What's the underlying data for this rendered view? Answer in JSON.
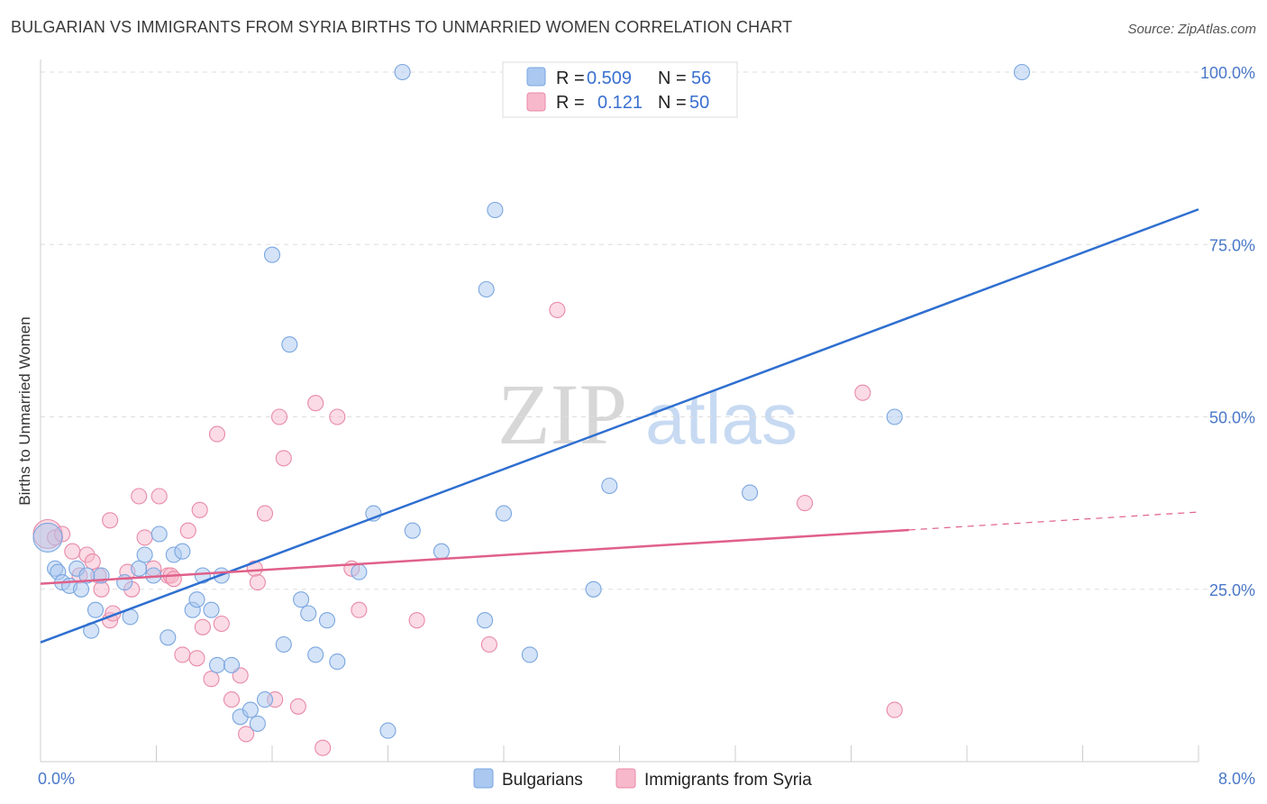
{
  "header": {
    "title": "BULGARIAN VS IMMIGRANTS FROM SYRIA BIRTHS TO UNMARRIED WOMEN CORRELATION CHART",
    "source": "Source: ZipAtlas.com"
  },
  "watermark": {
    "zip": "ZIP",
    "atlas": "atlas"
  },
  "legend_box": [
    {
      "r_label": "R =",
      "r_value": "0.509",
      "n_label": "N =",
      "n_value": "56"
    },
    {
      "r_label": "R =",
      "r_value": "0.121",
      "n_label": "N =",
      "n_value": "50"
    }
  ],
  "bottom_legend": [
    "Bulgarians",
    "Immigrants from Syria"
  ],
  "colors": {
    "bulgarians_fill": "#aac8f0",
    "bulgarians_stroke": "#7aa6e0",
    "bulgarians_line": "#2f6fd0",
    "syria_fill": "#f7b8cb",
    "syria_stroke": "#e88aa8",
    "syria_line": "#e0608a",
    "tick_text": "#4a78c8",
    "grid": "#dddddd"
  },
  "chart_data": {
    "type": "scatter",
    "title": "BULGARIAN VS IMMIGRANTS FROM SYRIA BIRTHS TO UNMARRIED WOMEN CORRELATION CHART",
    "xlabel": "",
    "ylabel": "Births to Unmarried Women",
    "xlim": [
      0,
      8
    ],
    "ylim": [
      0,
      100
    ],
    "x_tick_labels": [
      "0.0%",
      "8.0%"
    ],
    "y_ticks": [
      25,
      50,
      75,
      100
    ],
    "y_tick_labels": [
      "25.0%",
      "50.0%",
      "75.0%",
      "100.0%"
    ],
    "grid": true,
    "legend_position": "top-center",
    "series": [
      {
        "name": "Bulgarians",
        "R": 0.509,
        "N": 56,
        "trend": {
          "x": [
            0,
            8
          ],
          "y": [
            17.3,
            80.1
          ]
        },
        "points": [
          [
            0.05,
            32.5
          ],
          [
            0.1,
            28
          ],
          [
            0.12,
            27.5
          ],
          [
            0.15,
            26
          ],
          [
            0.2,
            25.5
          ],
          [
            0.25,
            28
          ],
          [
            0.28,
            25
          ],
          [
            0.32,
            27
          ],
          [
            0.35,
            19
          ],
          [
            0.38,
            22
          ],
          [
            0.42,
            27
          ],
          [
            0.58,
            26
          ],
          [
            0.62,
            21
          ],
          [
            0.68,
            28
          ],
          [
            0.72,
            30
          ],
          [
            0.78,
            27
          ],
          [
            0.82,
            33
          ],
          [
            0.88,
            18
          ],
          [
            0.92,
            30
          ],
          [
            0.98,
            30.5
          ],
          [
            1.05,
            22
          ],
          [
            1.08,
            23.5
          ],
          [
            1.12,
            27
          ],
          [
            1.18,
            22
          ],
          [
            1.22,
            14
          ],
          [
            1.25,
            27
          ],
          [
            1.32,
            14
          ],
          [
            1.38,
            6.5
          ],
          [
            1.45,
            7.5
          ],
          [
            1.5,
            5.5
          ],
          [
            1.55,
            9
          ],
          [
            1.6,
            73.5
          ],
          [
            1.68,
            17
          ],
          [
            1.72,
            60.5
          ],
          [
            1.8,
            23.5
          ],
          [
            1.85,
            21.5
          ],
          [
            1.9,
            15.5
          ],
          [
            1.98,
            20.5
          ],
          [
            2.05,
            14.5
          ],
          [
            2.2,
            27.5
          ],
          [
            2.3,
            36
          ],
          [
            2.4,
            4.5
          ],
          [
            2.57,
            33.5
          ],
          [
            2.77,
            30.5
          ],
          [
            3.07,
            20.5
          ],
          [
            3.08,
            68.5
          ],
          [
            3.14,
            80
          ],
          [
            3.2,
            36
          ],
          [
            3.38,
            15.5
          ],
          [
            3.82,
            25
          ],
          [
            3.93,
            40
          ],
          [
            4.9,
            39
          ],
          [
            5.9,
            50
          ],
          [
            6.78,
            100
          ],
          [
            3.25,
            100
          ],
          [
            2.5,
            100
          ]
        ]
      },
      {
        "name": "Immigrants from Syria",
        "R": 0.121,
        "N": 50,
        "trend": {
          "x": [
            0,
            6
          ],
          "y": [
            25.8,
            33.6
          ]
        },
        "trend_dashed": {
          "x": [
            6,
            8
          ],
          "y": [
            33.6,
            36.2
          ]
        },
        "points": [
          [
            0.05,
            33
          ],
          [
            0.1,
            32.5
          ],
          [
            0.15,
            33
          ],
          [
            0.22,
            30.5
          ],
          [
            0.27,
            27
          ],
          [
            0.32,
            30
          ],
          [
            0.36,
            29
          ],
          [
            0.4,
            27
          ],
          [
            0.42,
            25
          ],
          [
            0.48,
            20.5
          ],
          [
            0.5,
            21.5
          ],
          [
            0.6,
            27.5
          ],
          [
            0.63,
            25
          ],
          [
            0.68,
            38.5
          ],
          [
            0.72,
            32.5
          ],
          [
            0.78,
            28
          ],
          [
            0.82,
            38.5
          ],
          [
            0.88,
            27
          ],
          [
            0.9,
            27
          ],
          [
            0.92,
            26.5
          ],
          [
            0.98,
            15.5
          ],
          [
            1.02,
            33.5
          ],
          [
            1.08,
            15
          ],
          [
            1.1,
            36.5
          ],
          [
            1.12,
            19.5
          ],
          [
            1.18,
            12
          ],
          [
            1.22,
            47.5
          ],
          [
            1.25,
            20
          ],
          [
            1.32,
            9
          ],
          [
            1.38,
            12.5
          ],
          [
            1.42,
            4
          ],
          [
            1.48,
            28
          ],
          [
            1.5,
            26
          ],
          [
            1.55,
            36
          ],
          [
            1.62,
            9
          ],
          [
            1.65,
            50
          ],
          [
            1.68,
            44
          ],
          [
            1.78,
            8
          ],
          [
            1.9,
            52
          ],
          [
            1.95,
            2
          ],
          [
            2.05,
            50
          ],
          [
            2.15,
            28
          ],
          [
            2.2,
            22
          ],
          [
            2.6,
            20.5
          ],
          [
            3.1,
            17
          ],
          [
            3.57,
            65.5
          ],
          [
            5.28,
            37.5
          ],
          [
            5.68,
            53.5
          ],
          [
            5.9,
            7.5
          ],
          [
            0.48,
            35
          ]
        ]
      }
    ]
  }
}
